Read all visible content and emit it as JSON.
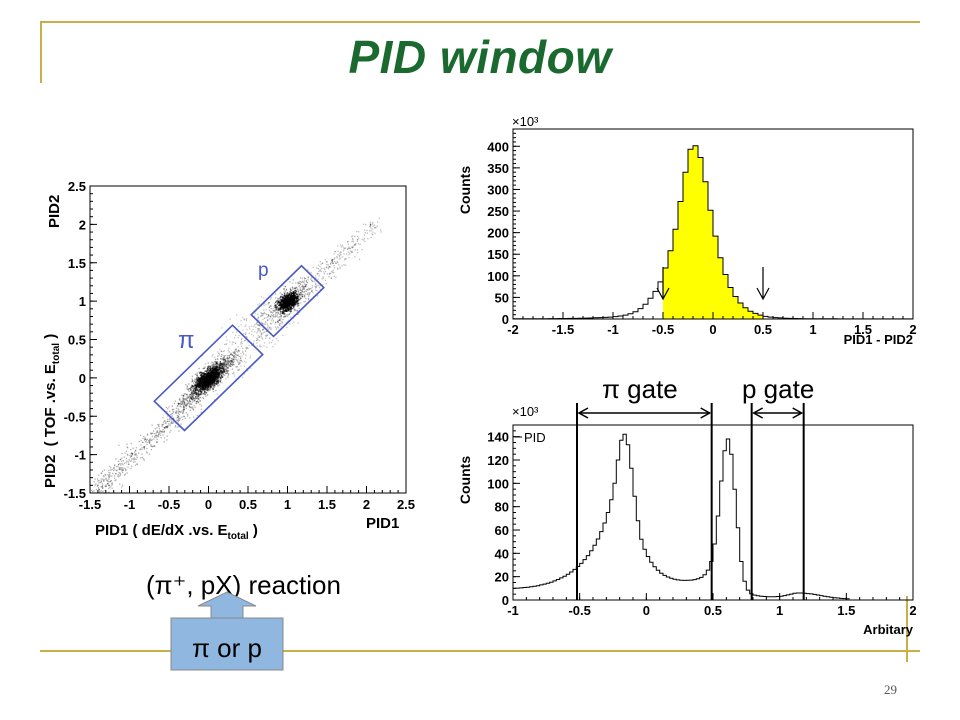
{
  "slide": {
    "title": "PID window",
    "page_number": "29",
    "reaction_label": "(π⁺, pX) reaction",
    "callout_label": "π or p",
    "pi_gate_label": "π gate",
    "p_gate_label": "p gate",
    "colors": {
      "title": "#1a6a30",
      "accent_lines": "#c8b048",
      "hist_fill": "#ffff00",
      "gate_box": "#4a58c8",
      "callout": "#8fb7e0"
    }
  },
  "chart_data": [
    {
      "type": "scatter",
      "xlabel": "PID1 ( dE/dX .vs. Etotal )",
      "ylabel": "PID2 ( TOF .vs. Etotal )",
      "x_axis_title": "PID1",
      "y_axis_title": "PID2",
      "xlim": [
        -1.5,
        2.5
      ],
      "ylim": [
        -1.5,
        2.5
      ],
      "x_ticks": [
        "-1.5",
        "-1",
        "-0.5",
        "0",
        "0.5",
        "1",
        "1.5",
        "2",
        "2.5"
      ],
      "y_ticks": [
        "-1.5",
        "-1",
        "-0.5",
        "0",
        "0.5",
        "1",
        "1.5",
        "2",
        "2.5"
      ],
      "clusters": [
        {
          "name": "π",
          "center": [
            0,
            0
          ]
        },
        {
          "name": "p",
          "center": [
            1,
            1
          ]
        }
      ],
      "gates": [
        {
          "label": "π",
          "along": [
            -0.7,
            0.7
          ],
          "across": [
            -0.27,
            0.27
          ]
        },
        {
          "label": "p",
          "along": [
            -0.45,
            0.45
          ],
          "across": [
            -0.2,
            0.2
          ]
        }
      ]
    },
    {
      "type": "bar",
      "xlabel": "PID1 - PID2",
      "ylabel": "Counts",
      "y_multiplier": "×10³",
      "xlim": [
        -2,
        2
      ],
      "ylim": [
        0,
        440
      ],
      "x_ticks": [
        "-2",
        "-1.5",
        "-1",
        "-0.5",
        "0",
        "0.5",
        "1",
        "1.5",
        "2"
      ],
      "y_ticks": [
        "0",
        "50",
        "100",
        "150",
        "200",
        "250",
        "300",
        "350",
        "400"
      ],
      "bin_width": 0.05,
      "values": [
        0.5,
        0.5,
        0.6,
        0.6,
        0.7,
        0.7,
        0.8,
        0.9,
        1,
        1.1,
        1.2,
        1.3,
        1.5,
        1.7,
        2,
        2.3,
        2.7,
        3.2,
        3.8,
        4.5,
        5.5,
        7,
        9,
        12,
        17,
        24,
        34,
        48,
        64,
        86,
        118,
        158,
        208,
        272,
        340,
        393,
        401,
        374,
        318,
        252,
        192,
        142,
        103,
        73,
        52,
        37,
        26,
        18,
        13,
        9,
        6,
        4.5,
        3.3,
        2.5,
        1.9,
        1.5,
        1.2,
        1,
        0.8,
        0.7,
        0.6,
        0.5,
        0.5,
        0.4,
        0.4,
        0.3,
        0.3,
        0.3,
        0.3,
        0.2,
        0.2,
        0.2,
        0.2,
        0.2,
        0.2,
        0.2,
        0.2,
        0.2,
        0.2,
        0.2
      ],
      "fill_range": [
        -0.5,
        0.5
      ],
      "markers_x": [
        -0.5,
        0.5
      ]
    },
    {
      "type": "line",
      "xlabel": "Arbitary",
      "ylabel": "Counts",
      "y_multiplier": "×10³",
      "legend": "PID",
      "xlim": [
        -1,
        2
      ],
      "ylim": [
        0,
        150
      ],
      "x_ticks": [
        "-1",
        "-0.5",
        "0",
        "0.5",
        "1",
        "1.5",
        "2"
      ],
      "y_ticks": [
        "0",
        "20",
        "40",
        "60",
        "80",
        "100",
        "120",
        "140"
      ],
      "bin_width": 0.025,
      "values": [
        10,
        10.2,
        10.4,
        10.7,
        11,
        11.4,
        11.8,
        12.3,
        12.9,
        13.6,
        14.4,
        15.3,
        16.4,
        17.6,
        18.9,
        20.4,
        22.1,
        24,
        26.2,
        28.7,
        31.4,
        34.6,
        38.1,
        42.2,
        46.9,
        52.3,
        58.6,
        66,
        75,
        86,
        100,
        120,
        137,
        142,
        133,
        113,
        89,
        68,
        52,
        43.5,
        37.3,
        32.3,
        28.5,
        25.5,
        23,
        21.1,
        19.7,
        18.6,
        17.8,
        17.2,
        16.9,
        16.8,
        16.9,
        17.1,
        17.5,
        18.2,
        19.4,
        21.6,
        25.6,
        33,
        48,
        72,
        102,
        128,
        138,
        125,
        95,
        62,
        33,
        16,
        8.5,
        5.4,
        4.2,
        3.6,
        3.2,
        3,
        2.8,
        2.7,
        2.8,
        3,
        3.3,
        3.8,
        4.4,
        5.1,
        5.7,
        6,
        6,
        5.8,
        5.5,
        5.2,
        4.8,
        4.3,
        3.8,
        3.3,
        2.8,
        2.4,
        2,
        1.7,
        1.4,
        1.2,
        1
      ],
      "gate_lines_x": [
        -0.52,
        0.49,
        0.79,
        1.18
      ],
      "gates": [
        {
          "label": "π gate",
          "range": [
            -0.52,
            0.49
          ]
        },
        {
          "label": "p gate",
          "range": [
            0.79,
            1.18
          ]
        }
      ]
    }
  ]
}
